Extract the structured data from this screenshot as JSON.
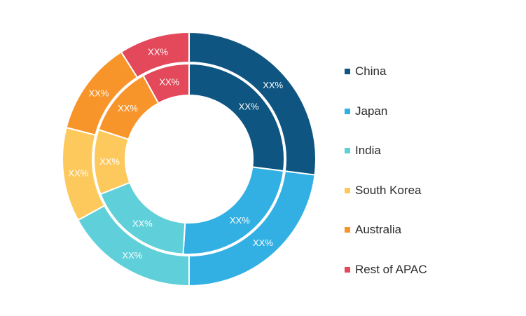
{
  "chart_data": {
    "type": "donut",
    "categories": [
      "China",
      "Japan",
      "India",
      "South Korea",
      "Australia",
      "Rest of APAC"
    ],
    "colors": [
      "#0e5582",
      "#33b0e3",
      "#5fd0d9",
      "#fdc95c",
      "#f7952b",
      "#e3495a"
    ],
    "series": [
      {
        "ring": "outer",
        "values": [
          27,
          23,
          17,
          12,
          12,
          9
        ],
        "labels": [
          "XX%",
          "XX%",
          "XX%",
          "XX%",
          "XX%",
          "XX%"
        ]
      },
      {
        "ring": "inner",
        "values": [
          27,
          24,
          18,
          11,
          12,
          8
        ],
        "labels": [
          "XX%",
          "XX%",
          "XX%",
          "XX%",
          "XX%",
          "XX%"
        ]
      }
    ],
    "legend_position": "right"
  },
  "legend": {
    "items": [
      {
        "label": "China",
        "color": "#0e5582"
      },
      {
        "label": "Japan",
        "color": "#33b0e3"
      },
      {
        "label": "India",
        "color": "#5fd0d9"
      },
      {
        "label": "South Korea",
        "color": "#fdc95c"
      },
      {
        "label": "Australia",
        "color": "#f7952b"
      },
      {
        "label": "Rest of APAC",
        "color": "#e3495a"
      }
    ]
  }
}
